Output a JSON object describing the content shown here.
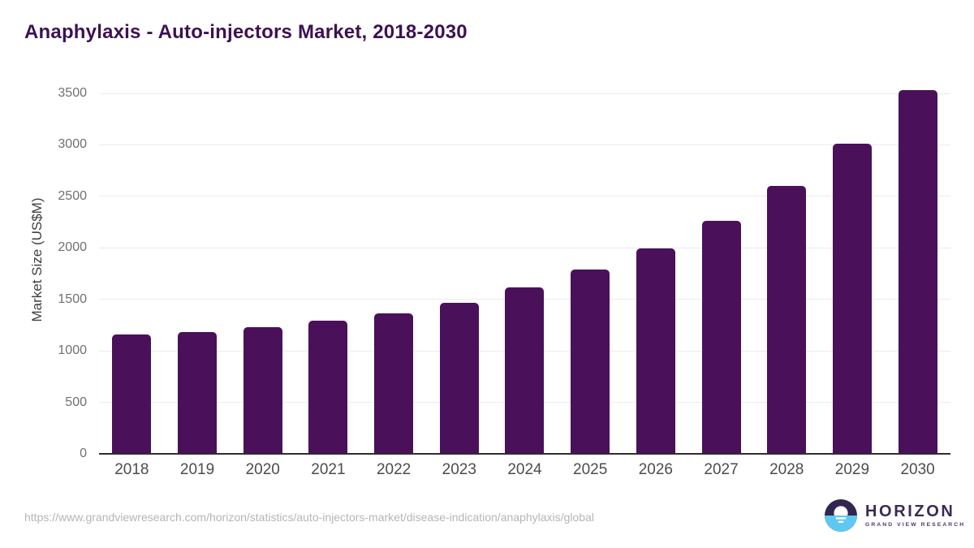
{
  "title": "Anaphylaxis - Auto-injectors Market, 2018-2030",
  "colors": {
    "bar": "#4a105a",
    "title_text": "#3d1153",
    "gridline": "#ebebee",
    "axis_line": "#2e2e2e",
    "x_label": "#4c4c4c",
    "y_label": "#707070",
    "url_text": "#b5b5b5",
    "logo_purple": "#312650",
    "logo_blue": "#5ec8f2"
  },
  "chart_data": {
    "type": "bar",
    "title": "Anaphylaxis - Auto-injectors Market, 2018-2030",
    "categories": [
      "2018",
      "2019",
      "2020",
      "2021",
      "2022",
      "2023",
      "2024",
      "2025",
      "2026",
      "2027",
      "2028",
      "2029",
      "2030"
    ],
    "values": [
      1158,
      1185,
      1228,
      1292,
      1365,
      1470,
      1618,
      1788,
      1998,
      2265,
      2598,
      3008,
      3530
    ],
    "xlabel": "",
    "ylabel": "Market Size (US$M)",
    "ylim": [
      0,
      3500
    ],
    "yticks": [
      0,
      500,
      1000,
      1500,
      2000,
      2500,
      3000,
      3500
    ],
    "grid": true,
    "legend_position": "none"
  },
  "footer": {
    "source_url": "https://www.grandviewresearch.com/horizon/statistics/auto-injectors-market/disease-indication/anaphylaxis/global",
    "logo": {
      "name": "HORIZON",
      "subtitle": "GRAND VIEW RESEARCH"
    }
  }
}
